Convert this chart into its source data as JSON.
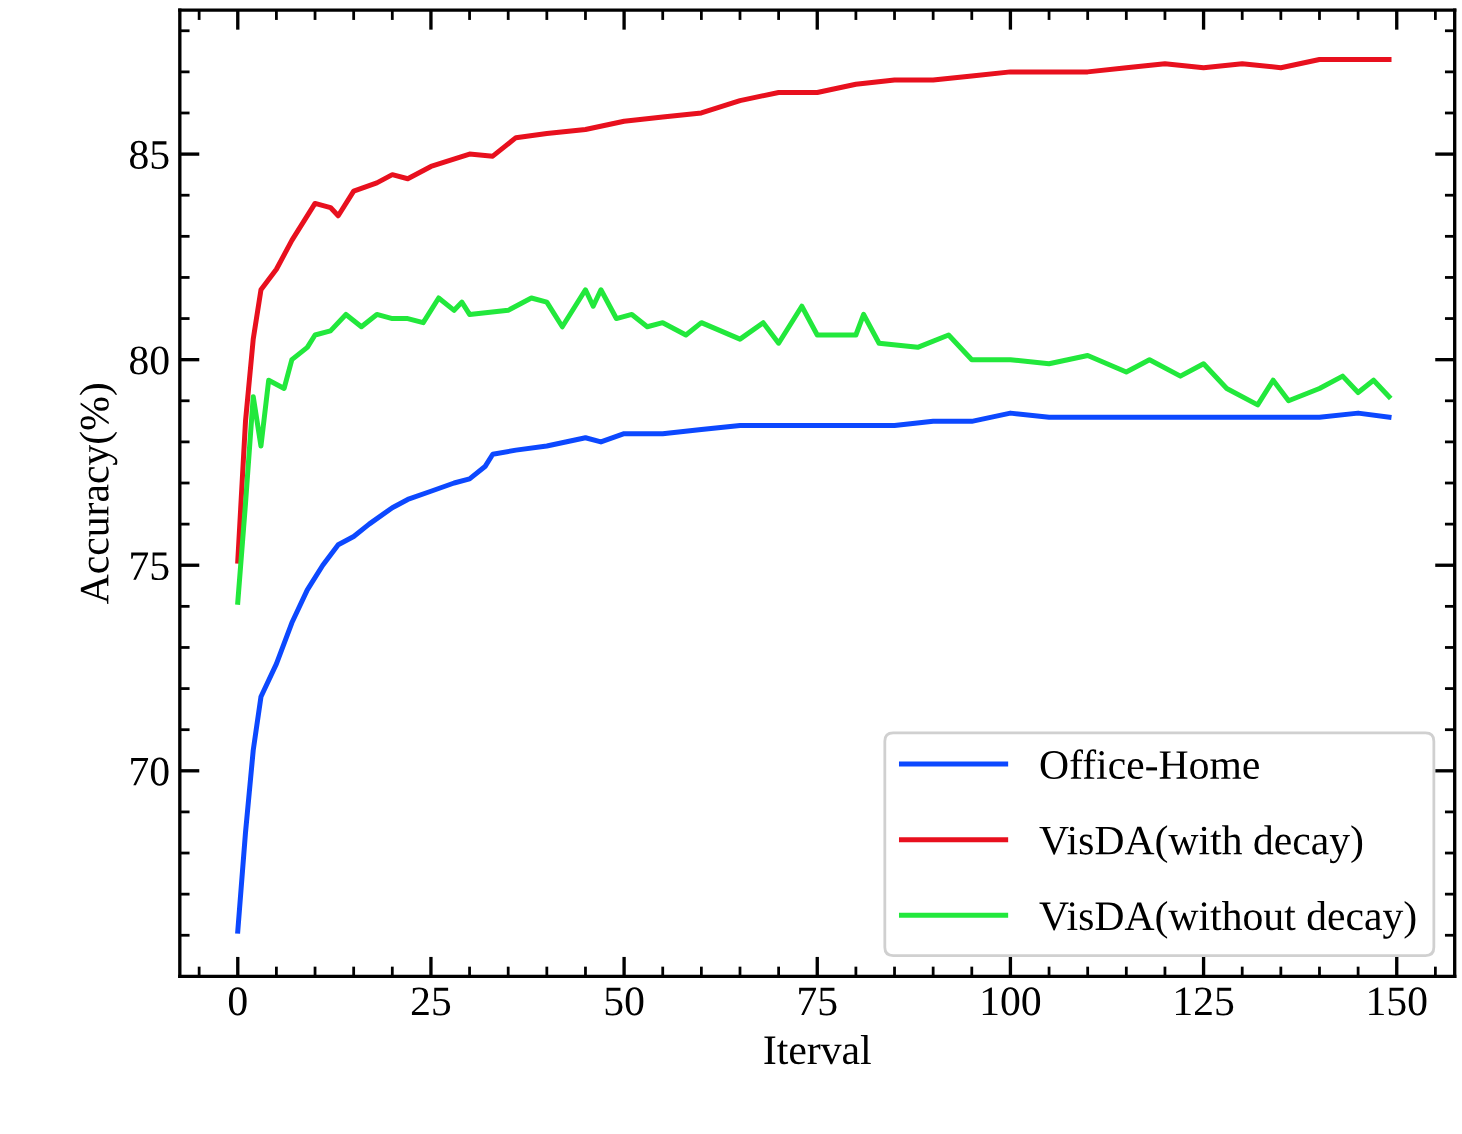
{
  "chart_data": {
    "type": "line",
    "xlabel": "Iterval",
    "ylabel": "Accuracy(%)",
    "xlim": [
      -7.5,
      157.5
    ],
    "ylim": [
      65,
      88.5
    ],
    "xticks": [
      0,
      25,
      50,
      75,
      100,
      125,
      150
    ],
    "yticks": [
      70,
      75,
      80,
      85
    ],
    "legend": "bottom right",
    "grid": false,
    "line_style": "solid",
    "marker": "none",
    "series": [
      {
        "name": "Office-Home",
        "color": "#0c48ff",
        "x": [
          0,
          1,
          2,
          3,
          5,
          7,
          9,
          11,
          13,
          15,
          17,
          20,
          22,
          25,
          28,
          30,
          32,
          33,
          36,
          40,
          45,
          47,
          50,
          55,
          60,
          65,
          70,
          75,
          80,
          85,
          90,
          95,
          100,
          105,
          110,
          115,
          120,
          125,
          130,
          135,
          140,
          145,
          149
        ],
        "values": [
          66.1,
          68.5,
          70.5,
          71.8,
          72.6,
          73.6,
          74.4,
          75.0,
          75.5,
          75.7,
          76.0,
          76.4,
          76.6,
          76.8,
          77.0,
          77.1,
          77.4,
          77.7,
          77.8,
          77.9,
          78.1,
          78.0,
          78.2,
          78.2,
          78.3,
          78.4,
          78.4,
          78.4,
          78.4,
          78.4,
          78.5,
          78.5,
          78.7,
          78.6,
          78.6,
          78.6,
          78.6,
          78.6,
          78.6,
          78.6,
          78.6,
          78.7,
          78.6
        ]
      },
      {
        "name": "VisDA(with decay)",
        "color": "#e8101e",
        "x": [
          0,
          1,
          2,
          3,
          5,
          7,
          10,
          12,
          13,
          15,
          18,
          20,
          22,
          25,
          30,
          33,
          36,
          40,
          45,
          50,
          55,
          60,
          65,
          70,
          75,
          80,
          85,
          90,
          95,
          100,
          105,
          110,
          115,
          120,
          125,
          130,
          135,
          140,
          145,
          149
        ],
        "values": [
          75.1,
          78.5,
          80.5,
          81.7,
          82.2,
          82.9,
          83.8,
          83.7,
          83.5,
          84.1,
          84.3,
          84.5,
          84.4,
          84.7,
          85.0,
          84.95,
          85.4,
          85.5,
          85.6,
          85.8,
          85.9,
          86.0,
          86.3,
          86.5,
          86.5,
          86.7,
          86.8,
          86.8,
          86.9,
          87.0,
          87.0,
          87.0,
          87.1,
          87.2,
          87.1,
          87.2,
          87.1,
          87.3,
          87.3,
          87.3
        ]
      },
      {
        "name": "VisDA(without decay)",
        "color": "#22e83c",
        "x": [
          0,
          1,
          2,
          3,
          4,
          6,
          7,
          9,
          10,
          12,
          14,
          16,
          18,
          20,
          22,
          24,
          26,
          28,
          29,
          30,
          35,
          38,
          40,
          42,
          45,
          46,
          47,
          49,
          51,
          53,
          55,
          58,
          60,
          65,
          68,
          70,
          73,
          75,
          80,
          81,
          83,
          88,
          92,
          95,
          100,
          105,
          110,
          115,
          118,
          122,
          125,
          128,
          132,
          134,
          136,
          140,
          143,
          145,
          147,
          149
        ],
        "values": [
          74.1,
          76.5,
          79.1,
          77.9,
          79.5,
          79.3,
          80.0,
          80.3,
          80.6,
          80.7,
          81.1,
          80.8,
          81.1,
          81.0,
          81.0,
          80.9,
          81.5,
          81.2,
          81.4,
          81.1,
          81.2,
          81.5,
          81.4,
          80.8,
          81.7,
          81.3,
          81.7,
          81.0,
          81.1,
          80.8,
          80.9,
          80.6,
          80.9,
          80.5,
          80.9,
          80.4,
          81.3,
          80.6,
          80.6,
          81.1,
          80.4,
          80.3,
          80.6,
          80.0,
          80.0,
          79.9,
          80.1,
          79.7,
          80.0,
          79.6,
          79.9,
          79.3,
          78.9,
          79.5,
          79.0,
          79.3,
          79.6,
          79.2,
          79.5,
          79.1
        ]
      }
    ]
  }
}
